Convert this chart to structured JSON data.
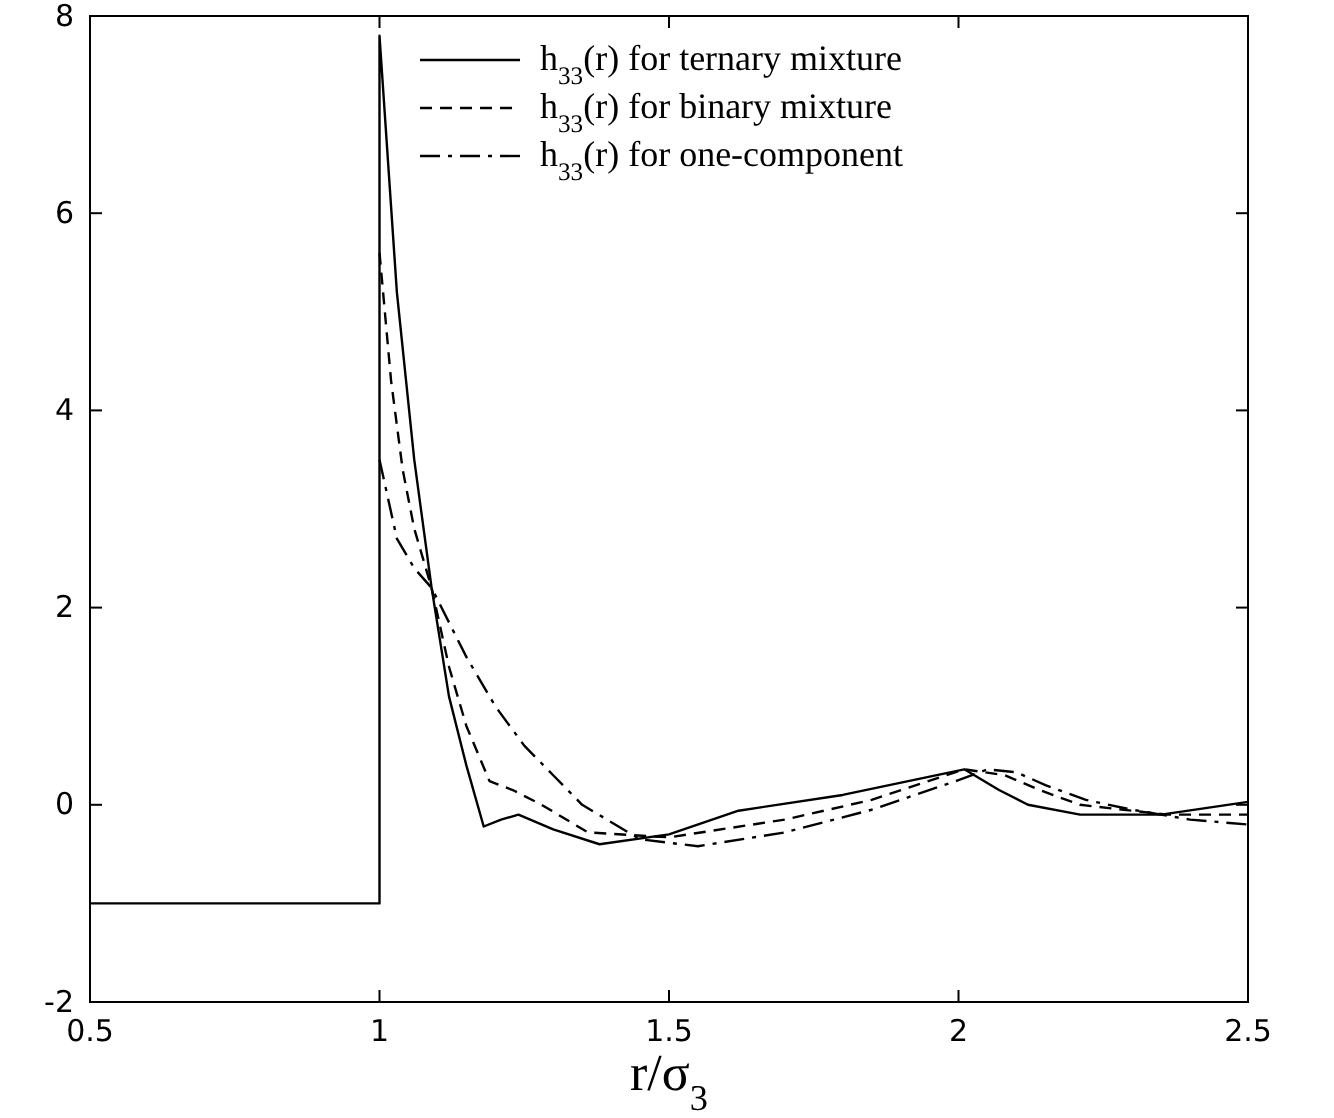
{
  "chart_data": {
    "type": "line",
    "xlabel": "r/σ$_{3}$",
    "xlim": [
      0.5,
      2.5
    ],
    "ylim": [
      -2,
      8
    ],
    "xticks": [
      0.5,
      1,
      1.5,
      2,
      2.5
    ],
    "yticks": [
      -2,
      0,
      2,
      4,
      6,
      8
    ],
    "legend": "top right",
    "grid": false,
    "series": [
      {
        "name": "h$_{33}$(r) for ternary mixture",
        "color": "#000000",
        "line_style": "solid",
        "x": [
          0.5,
          1,
          1,
          1.03,
          1.06,
          1.09,
          1.12,
          1.15,
          1.18,
          1.21,
          1.24,
          1.3,
          1.38,
          1.5,
          1.62,
          1.8,
          2.01,
          2.07,
          2.12,
          2.21,
          2.35,
          2.5
        ],
        "values": [
          -1,
          -1,
          7.8,
          5.2,
          3.5,
          2.2,
          1.1,
          0.4,
          -0.22,
          -0.15,
          -0.1,
          -0.25,
          -0.4,
          -0.3,
          -0.06,
          0.1,
          0.36,
          0.15,
          0,
          -0.1,
          -0.1,
          0.03
        ]
      },
      {
        "name": "h$_{33}$(r) for binary mixture",
        "color": "#000000",
        "line_style": "dashed",
        "x": [
          1,
          1.02,
          1.04,
          1.06,
          1.09,
          1.12,
          1.15,
          1.19,
          1.23,
          1.28,
          1.36,
          1.5,
          1.7,
          1.85,
          2.01,
          2.08,
          2.14,
          2.21,
          2.36,
          2.5
        ],
        "values": [
          5.6,
          4.3,
          3.4,
          2.8,
          2.2,
          1.4,
          0.8,
          0.24,
          0.15,
          0.0,
          -0.28,
          -0.33,
          -0.15,
          0.05,
          0.36,
          0.3,
          0.15,
          0.0,
          -0.1,
          -0.1
        ]
      },
      {
        "name": "h$_{33}$(r) for one-component",
        "color": "#000000",
        "line_style": "dashdot",
        "x": [
          1,
          1.03,
          1.06,
          1.09,
          1.15,
          1.2,
          1.25,
          1.3,
          1.35,
          1.45,
          1.55,
          1.7,
          1.85,
          2.0,
          2.05,
          2.1,
          2.15,
          2.22,
          2.3,
          2.4,
          2.5
        ],
        "values": [
          3.5,
          2.7,
          2.4,
          2.2,
          1.5,
          1.0,
          0.6,
          0.3,
          0.0,
          -0.35,
          -0.42,
          -0.28,
          -0.05,
          0.25,
          0.36,
          0.33,
          0.2,
          0.05,
          -0.05,
          -0.15,
          -0.2
        ]
      }
    ]
  }
}
